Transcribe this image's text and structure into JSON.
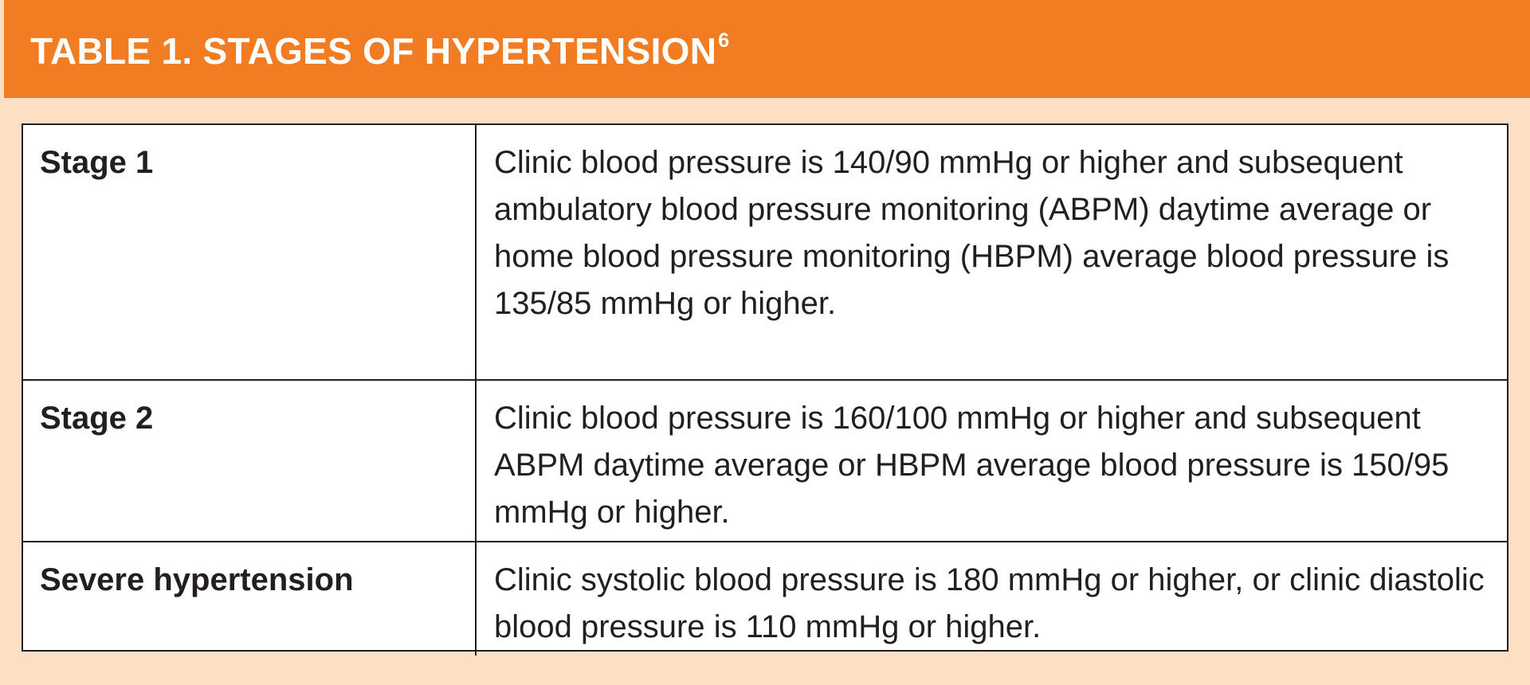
{
  "header": {
    "title": "TABLE 1. STAGES OF HYPERTENSION",
    "footnote": "6"
  },
  "table": {
    "rows": [
      {
        "stage": "Stage 1",
        "description": "Clinic blood pressure is 140/90 mmHg or higher and subsequent ambulatory blood pressure monitoring (ABPM) daytime average or home blood pressure monitoring (HBPM) average blood pressure is 135/85 mmHg or higher."
      },
      {
        "stage": "Stage 2",
        "description": "Clinic blood pressure is 160/100 mmHg or higher and subsequent ABPM daytime average or HBPM average blood pressure is 150/95 mmHg or higher."
      },
      {
        "stage": "Severe hypertension",
        "description": "Clinic systolic blood pressure is 180 mmHg or higher, or clinic diastolic blood pressure is 110 mmHg or higher."
      }
    ]
  },
  "colors": {
    "header_bg": "#f27c22",
    "page_bg": "#fddfc4",
    "border": "#231f20",
    "text": "#231f20"
  }
}
